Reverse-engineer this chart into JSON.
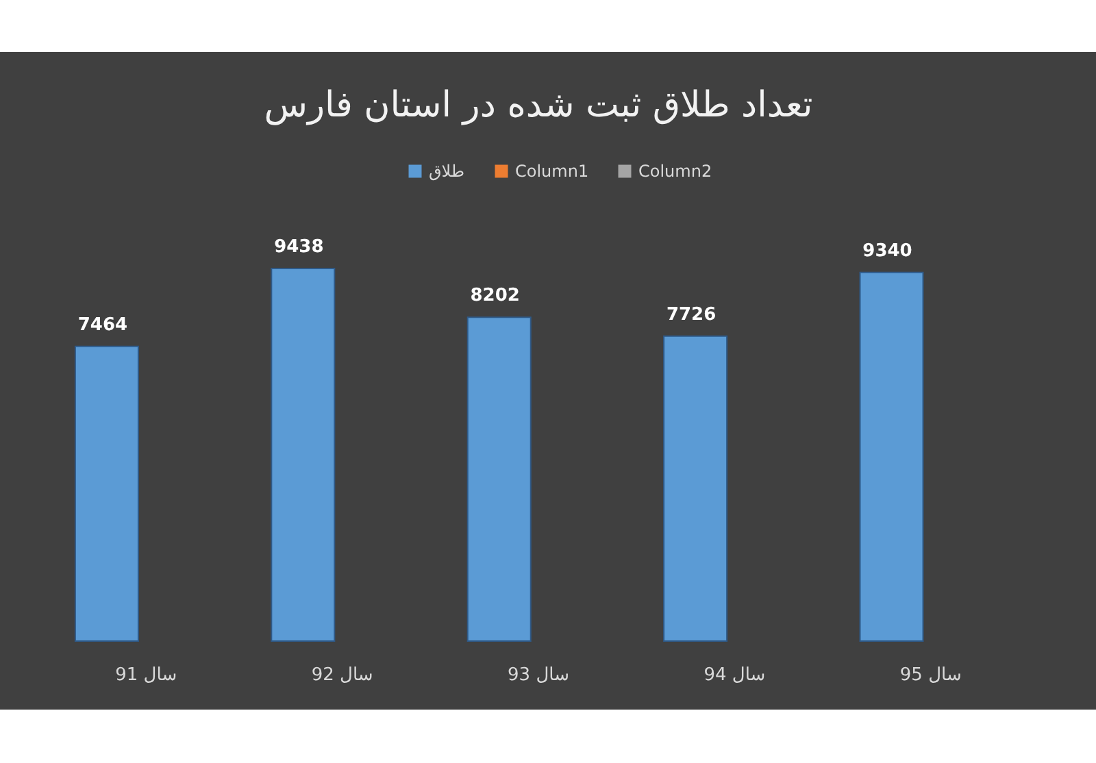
{
  "chart_data": {
    "type": "bar",
    "title": "تعداد طلاق ثبت شده در استان فارس",
    "categories": [
      "سال 91",
      "سال 92",
      "سال 93",
      "سال 94",
      "سال 95"
    ],
    "series": [
      {
        "name": "طلاق",
        "color": "#5b9bd5",
        "values": [
          7464,
          9438,
          8202,
          7726,
          9340
        ]
      },
      {
        "name": "Column1",
        "color": "#ed7d31",
        "values": [
          null,
          null,
          null,
          null,
          null
        ]
      },
      {
        "name": "Column2",
        "color": "#a5a5a5",
        "values": [
          null,
          null,
          null,
          null,
          null
        ]
      }
    ],
    "data_labels": true,
    "legend": "top",
    "tick_labels": "x"
  }
}
